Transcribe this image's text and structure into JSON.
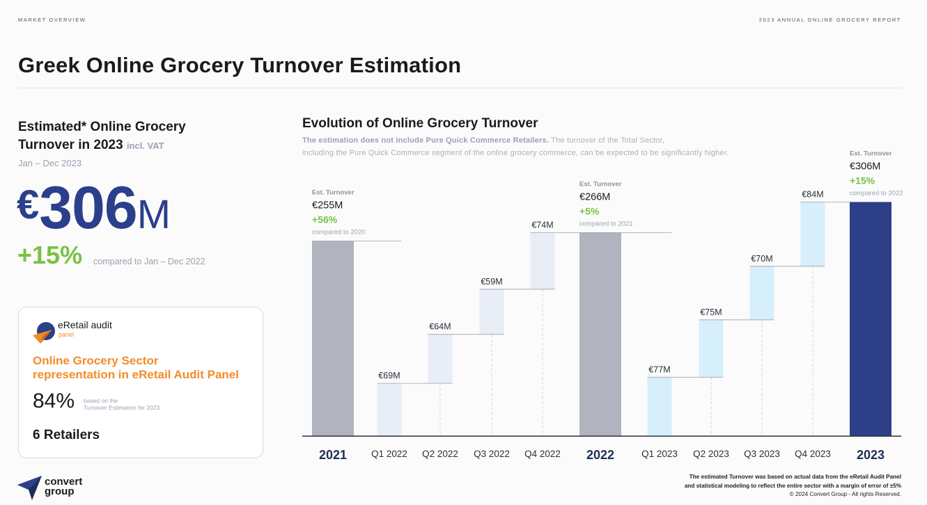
{
  "header": {
    "section": "MARKET OVERVIEW",
    "report": "2023 ANNUAL ONLINE GROCERY REPORT",
    "title": "Greek Online Grocery Turnover Estimation"
  },
  "kpi": {
    "heading_line1": "Estimated* Online Grocery",
    "heading_line2": "Turnover in 2023",
    "heading_vat": "incl. VAT",
    "period": "Jan – Dec 2023",
    "currency": "€",
    "value": "306",
    "unit": "M",
    "growth": "+15%",
    "compare": "compared to Jan – Dec 2022"
  },
  "panel": {
    "logo_name": "eRetail audit",
    "logo_sub": "panel",
    "heading_line1": "Online Grocery Sector",
    "heading_line2": "representation in eRetail Audit Panel",
    "share": "84%",
    "share_note_line1": "based on the",
    "share_note_line2": "Turnover Estimation for 2023",
    "retailers": "6 Retailers"
  },
  "brand": {
    "line1": "convert",
    "line2": "group"
  },
  "chart_data": {
    "type": "bar",
    "title": "Evolution of Online Grocery Turnover",
    "subtitle_bold": "The estimation does not include Pure Quick Commerce Retailers.",
    "subtitle_rest": "The turnover of the Total Sector,",
    "subtitle_line2": "including the Pure Quick Commerce segment of the online grocery commerce, can be expected to be significantly higher.",
    "unit": "€M",
    "categories": [
      "2021",
      "Q1 2022",
      "Q2 2022",
      "Q3 2022",
      "Q4 2022",
      "2022",
      "Q1 2023",
      "Q2 2023",
      "Q3 2023",
      "Q4 2023",
      "2023"
    ],
    "bars": [
      {
        "label": "2021",
        "kind": "total",
        "value": 255,
        "value_label": "€255M",
        "est_label": "Est. Turnover",
        "growth": "+56%",
        "compare": "compared to 2020",
        "color": "#b1b4bf"
      },
      {
        "label": "Q1 2022",
        "kind": "step",
        "value": 69,
        "value_label": "€69M",
        "color": "#e8edf6"
      },
      {
        "label": "Q2 2022",
        "kind": "step",
        "value": 64,
        "value_label": "€64M",
        "color": "#e8edf6"
      },
      {
        "label": "Q3 2022",
        "kind": "step",
        "value": 59,
        "value_label": "€59M",
        "color": "#e8edf6"
      },
      {
        "label": "Q4 2022",
        "kind": "step",
        "value": 74,
        "value_label": "€74M",
        "color": "#e8edf6"
      },
      {
        "label": "2022",
        "kind": "total",
        "value": 266,
        "value_label": "€266M",
        "est_label": "Est. Turnover",
        "growth": "+5%",
        "compare": "compared to 2021",
        "color": "#b1b4bf"
      },
      {
        "label": "Q1 2023",
        "kind": "step",
        "value": 77,
        "value_label": "€77M",
        "color": "#d7effb"
      },
      {
        "label": "Q2 2023",
        "kind": "step",
        "value": 75,
        "value_label": "€75M",
        "color": "#d7effb"
      },
      {
        "label": "Q3 2023",
        "kind": "step",
        "value": 70,
        "value_label": "€70M",
        "color": "#d7effb"
      },
      {
        "label": "Q4 2023",
        "kind": "step",
        "value": 84,
        "value_label": "€84M",
        "color": "#d7effb"
      },
      {
        "label": "2023",
        "kind": "total",
        "value": 306,
        "value_label": "€306M",
        "est_label": "Est. Turnover",
        "growth": "+15%",
        "compare": "compared to 2022",
        "color": "#2c3f88"
      }
    ],
    "colors": {
      "growth": "#7ac143",
      "axis": "#2b2f3a"
    }
  },
  "footnote": {
    "line1": "The estimated Turnover was based on actual data from the eRetail Audit Panel",
    "line2": "and statistical modeling to reflect the entire sector with a margin of error of ±5%",
    "line3": "© 2024 Convert Group - All rights Reserved."
  }
}
